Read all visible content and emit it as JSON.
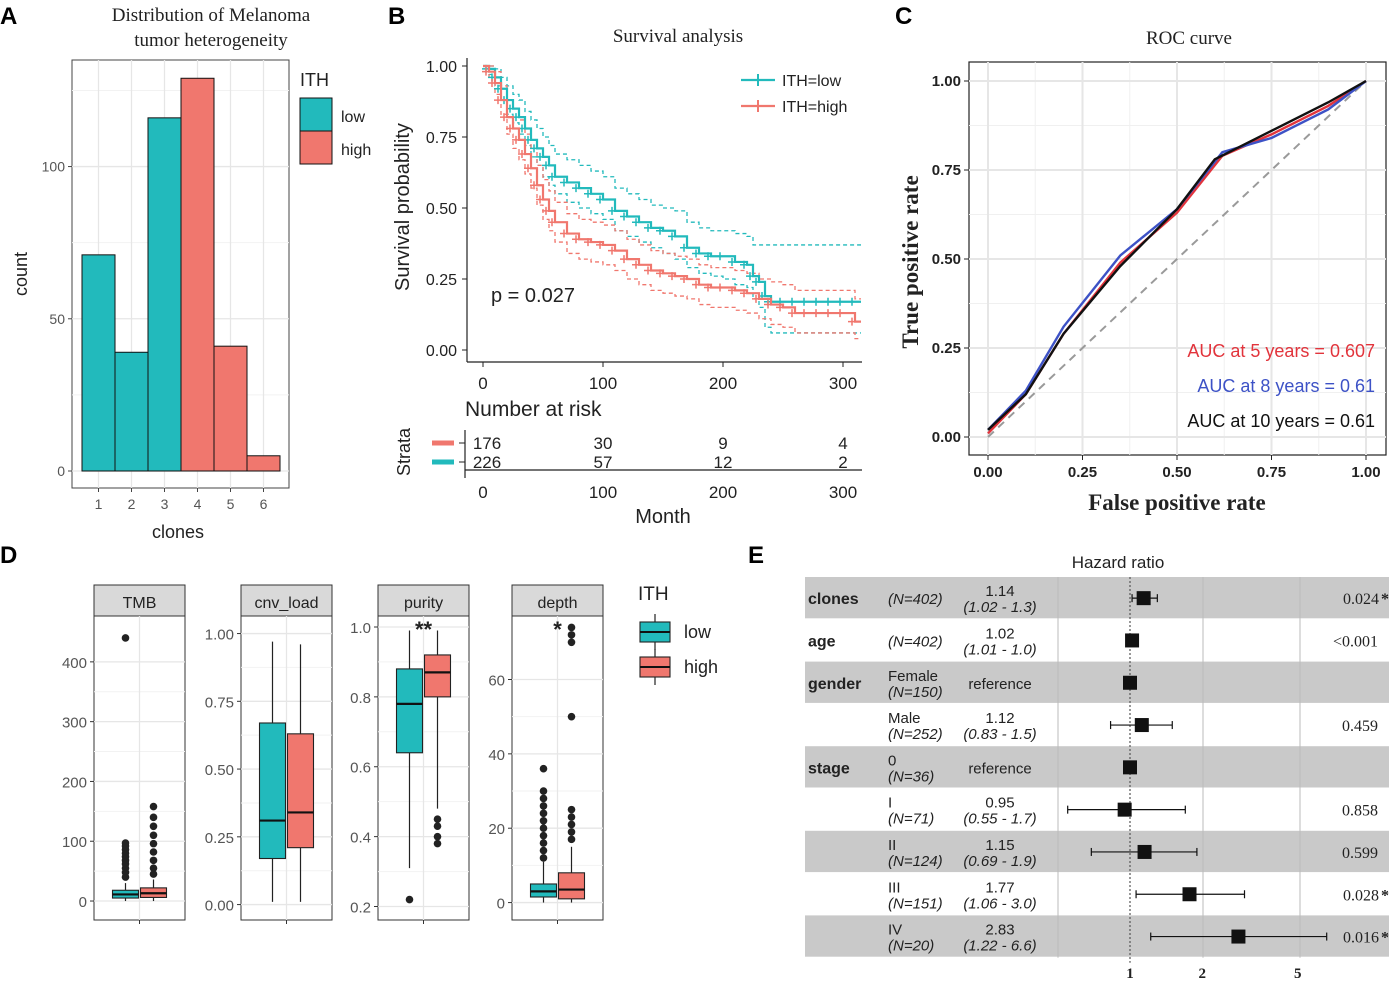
{
  "panel_letters": [
    "A",
    "B",
    "C",
    "D",
    "E"
  ],
  "colors": {
    "low": "#22BABC",
    "high": "#F0776E",
    "blue": "#3D52C6",
    "red": "#E2343C",
    "black": "#111111",
    "grid": "#E6E6E6",
    "forest_shade": "#C9C9C9"
  },
  "chart_data": [
    {
      "id": "A",
      "type": "bar",
      "title_lines": [
        "Distribution of Melanoma",
        "tumor heterogeneity"
      ],
      "xlabel": "clones",
      "ylabel": "count",
      "categories": [
        "1",
        "2",
        "3",
        "4",
        "5",
        "6"
      ],
      "values": [
        71,
        39,
        116,
        129,
        41,
        5
      ],
      "groups": [
        "low",
        "low",
        "low",
        "high",
        "high",
        "high"
      ],
      "yticks": [
        0,
        50,
        100
      ],
      "ylim": [
        0,
        135
      ],
      "legend": {
        "title": "ITH",
        "items": [
          "low",
          "high"
        ]
      }
    },
    {
      "id": "B",
      "type": "line",
      "title": "Survival analysis",
      "ylabel": "Survival probability",
      "xlabel": "Month",
      "xticks": [
        0,
        100,
        200,
        300
      ],
      "yticks": [
        "0.00",
        "0.25",
        "0.50",
        "0.75",
        "1.00"
      ],
      "xlim": [
        0,
        315
      ],
      "ylim": [
        0,
        1
      ],
      "pvalue_text": "p = 0.027",
      "series": [
        {
          "name": "ITH=low",
          "key": "low",
          "x": [
            0,
            5,
            10,
            15,
            20,
            25,
            30,
            35,
            40,
            45,
            50,
            55,
            60,
            70,
            80,
            90,
            100,
            110,
            120,
            130,
            140,
            150,
            160,
            170,
            180,
            190,
            200,
            210,
            220,
            225,
            230,
            235,
            240,
            250,
            260,
            270,
            280,
            290,
            300,
            310,
            315
          ],
          "y": [
            1.0,
            0.99,
            0.96,
            0.92,
            0.88,
            0.85,
            0.82,
            0.78,
            0.74,
            0.71,
            0.68,
            0.65,
            0.61,
            0.59,
            0.57,
            0.55,
            0.53,
            0.49,
            0.47,
            0.45,
            0.43,
            0.42,
            0.4,
            0.36,
            0.34,
            0.33,
            0.33,
            0.31,
            0.3,
            0.26,
            0.24,
            0.19,
            0.17,
            0.17,
            0.17,
            0.17,
            0.17,
            0.17,
            0.17,
            0.17,
            0.17
          ],
          "ci_low": [
            1.0,
            0.97,
            0.93,
            0.88,
            0.83,
            0.8,
            0.76,
            0.72,
            0.68,
            0.65,
            0.61,
            0.58,
            0.55,
            0.52,
            0.5,
            0.48,
            0.46,
            0.42,
            0.4,
            0.38,
            0.36,
            0.34,
            0.32,
            0.29,
            0.27,
            0.26,
            0.25,
            0.23,
            0.22,
            0.18,
            0.15,
            0.08,
            0.06,
            0.06,
            0.06,
            0.06,
            0.06,
            0.06,
            0.06,
            0.06,
            0.06
          ],
          "ci_high": [
            1.0,
            1.0,
            0.99,
            0.96,
            0.93,
            0.9,
            0.88,
            0.84,
            0.81,
            0.78,
            0.75,
            0.72,
            0.69,
            0.67,
            0.65,
            0.63,
            0.61,
            0.57,
            0.55,
            0.53,
            0.51,
            0.5,
            0.49,
            0.45,
            0.43,
            0.42,
            0.42,
            0.41,
            0.4,
            0.37,
            0.37,
            0.37,
            0.37,
            0.37,
            0.37,
            0.37,
            0.37,
            0.37,
            0.37,
            0.37,
            0.37
          ]
        },
        {
          "name": "ITH=high",
          "key": "high",
          "x": [
            0,
            5,
            10,
            15,
            20,
            25,
            30,
            35,
            40,
            45,
            50,
            55,
            60,
            70,
            80,
            90,
            100,
            110,
            120,
            130,
            140,
            150,
            160,
            170,
            180,
            190,
            200,
            210,
            220,
            230,
            240,
            250,
            260,
            270,
            280,
            290,
            300,
            310,
            315
          ],
          "y": [
            1.0,
            0.98,
            0.94,
            0.88,
            0.82,
            0.78,
            0.74,
            0.69,
            0.64,
            0.58,
            0.53,
            0.49,
            0.45,
            0.41,
            0.39,
            0.38,
            0.37,
            0.35,
            0.32,
            0.3,
            0.28,
            0.27,
            0.26,
            0.25,
            0.23,
            0.22,
            0.22,
            0.21,
            0.2,
            0.18,
            0.16,
            0.15,
            0.13,
            0.13,
            0.13,
            0.13,
            0.13,
            0.1,
            0.1
          ],
          "ci_low": [
            1.0,
            0.96,
            0.9,
            0.83,
            0.76,
            0.71,
            0.67,
            0.62,
            0.57,
            0.51,
            0.46,
            0.42,
            0.38,
            0.34,
            0.32,
            0.31,
            0.3,
            0.28,
            0.25,
            0.23,
            0.21,
            0.2,
            0.19,
            0.18,
            0.16,
            0.15,
            0.15,
            0.14,
            0.13,
            0.11,
            0.09,
            0.08,
            0.06,
            0.06,
            0.06,
            0.06,
            0.06,
            0.04,
            0.04
          ],
          "ci_high": [
            1.0,
            1.0,
            0.98,
            0.93,
            0.88,
            0.85,
            0.81,
            0.76,
            0.71,
            0.65,
            0.6,
            0.56,
            0.52,
            0.48,
            0.46,
            0.45,
            0.44,
            0.42,
            0.39,
            0.37,
            0.35,
            0.34,
            0.33,
            0.32,
            0.3,
            0.29,
            0.29,
            0.28,
            0.27,
            0.25,
            0.24,
            0.23,
            0.21,
            0.21,
            0.21,
            0.21,
            0.21,
            0.18,
            0.18
          ]
        }
      ],
      "legend": [
        "ITH=low",
        "ITH=high"
      ],
      "risk_table": {
        "title": "Number at risk",
        "strata_label": "Strata",
        "xlabel": "Month",
        "times": [
          0,
          100,
          200,
          300
        ],
        "rows": [
          {
            "key": "high",
            "counts": [
              "176",
              "30",
              "9",
              "4"
            ]
          },
          {
            "key": "low",
            "counts": [
              "226",
              "57",
              "12",
              "2"
            ]
          }
        ]
      }
    },
    {
      "id": "C",
      "type": "line",
      "title": "ROC curve",
      "xlabel": "False positive rate",
      "ylabel": "True positive rate",
      "xticks": [
        "0.00",
        "0.25",
        "0.50",
        "0.75",
        "1.00"
      ],
      "yticks": [
        "0.00",
        "0.25",
        "0.50",
        "0.75",
        "1.00"
      ],
      "xlim": [
        0,
        1
      ],
      "ylim": [
        0,
        1
      ],
      "series": [
        {
          "name": "AUC at 5 years = 0.607",
          "color": "#E2343C",
          "x": [
            0,
            0.1,
            0.2,
            0.35,
            0.5,
            0.62,
            0.75,
            0.9,
            1.0
          ],
          "y": [
            0.01,
            0.12,
            0.29,
            0.49,
            0.63,
            0.79,
            0.85,
            0.93,
            1.0
          ]
        },
        {
          "name": "AUC at 8 years = 0.61",
          "color": "#3D52C6",
          "x": [
            0,
            0.1,
            0.2,
            0.35,
            0.5,
            0.62,
            0.75,
            0.9,
            1.0
          ],
          "y": [
            0.02,
            0.13,
            0.31,
            0.51,
            0.64,
            0.8,
            0.84,
            0.92,
            1.0
          ]
        },
        {
          "name": "AUC at 10 years = 0.61",
          "color": "#111111",
          "x": [
            0,
            0.1,
            0.2,
            0.35,
            0.5,
            0.6,
            0.75,
            0.9,
            1.0
          ],
          "y": [
            0.02,
            0.12,
            0.29,
            0.48,
            0.64,
            0.78,
            0.86,
            0.94,
            1.0
          ]
        }
      ],
      "reference_line": [
        [
          0,
          0
        ],
        [
          1,
          1
        ]
      ]
    },
    {
      "id": "D",
      "type": "box",
      "legend": {
        "title": "ITH",
        "items": [
          "low",
          "high"
        ]
      },
      "facets": [
        {
          "name": "TMB",
          "yticks": [
            0,
            100,
            200,
            300,
            400
          ],
          "ylim": [
            -15,
            470
          ],
          "low": {
            "min": 0,
            "q1": 5,
            "median": 11,
            "q3": 18,
            "max": 30,
            "outliers": [
              40,
              48,
              55,
              62,
              68,
              74,
              80,
              86,
              92,
              97,
              440
            ]
          },
          "high": {
            "min": 0,
            "q1": 6,
            "median": 13,
            "q3": 22,
            "max": 36,
            "outliers": [
              45,
              55,
              68,
              82,
              96,
              110,
              125,
              140,
              158
            ]
          }
        },
        {
          "name": "cnv_load",
          "yticks": [
            "0.00",
            "0.25",
            "0.50",
            "0.75",
            "1.00"
          ],
          "ylim": [
            -0.02,
            1.05
          ],
          "low": {
            "min": 0.01,
            "q1": 0.17,
            "median": 0.31,
            "q3": 0.67,
            "max": 0.97,
            "outliers": []
          },
          "high": {
            "min": 0.01,
            "q1": 0.21,
            "median": 0.34,
            "q3": 0.63,
            "max": 0.96,
            "outliers": []
          }
        },
        {
          "name": "purity",
          "yticks": [
            "0.2",
            "0.4",
            "0.6",
            "0.8",
            "1.0"
          ],
          "ylim": [
            0.19,
            1.02
          ],
          "low": {
            "min": 0.31,
            "q1": 0.64,
            "median": 0.78,
            "q3": 0.88,
            "max": 0.99,
            "outliers": [
              0.22
            ]
          },
          "high": {
            "min": 0.48,
            "q1": 0.8,
            "median": 0.87,
            "q3": 0.92,
            "max": 0.99,
            "outliers": [
              0.38,
              0.4,
              0.43,
              0.45
            ]
          },
          "significance": "**"
        },
        {
          "name": "depth",
          "yticks": [
            0,
            20,
            40,
            60
          ],
          "ylim": [
            -2,
            76
          ],
          "low": {
            "min": 0,
            "q1": 1.5,
            "median": 3,
            "q3": 5,
            "max": 11,
            "outliers": [
              12,
              14,
              16,
              18,
              20,
              22,
              24,
              26,
              28,
              30,
              36
            ]
          },
          "high": {
            "min": 0,
            "q1": 1,
            "median": 3.5,
            "q3": 8,
            "max": 15,
            "outliers": [
              17,
              19,
              21,
              23,
              25,
              50,
              70,
              72,
              74
            ]
          },
          "significance": "*"
        }
      ]
    },
    {
      "id": "E",
      "type": "forest",
      "title": "Hazard ratio",
      "xticks": [
        "1",
        "2",
        "5"
      ],
      "xlim": [
        0.3,
        10
      ],
      "rows": [
        {
          "variable": "clones",
          "level": "",
          "n": "(N=402)",
          "estimate_text": "1.14",
          "ci_text": "(1.02 - 1.3)",
          "hr": 1.14,
          "lo": 1.02,
          "hi": 1.3,
          "pvalue": "0.024",
          "star": "*",
          "shaded": true
        },
        {
          "variable": "age",
          "level": "",
          "n": "(N=402)",
          "estimate_text": "1.02",
          "ci_text": "(1.01 - 1.0)",
          "hr": 1.02,
          "lo": 1.01,
          "hi": 1.03,
          "pvalue": "<0.001",
          "star": "",
          "shaded": false
        },
        {
          "variable": "gender",
          "level": "Female",
          "n": "(N=150)",
          "estimate_text": "reference",
          "ci_text": "",
          "hr": 1.0,
          "lo": null,
          "hi": null,
          "pvalue": "",
          "star": "",
          "shaded": true
        },
        {
          "variable": "",
          "level": "Male",
          "n": "(N=252)",
          "estimate_text": "1.12",
          "ci_text": "(0.83 - 1.5)",
          "hr": 1.12,
          "lo": 0.83,
          "hi": 1.5,
          "pvalue": "0.459",
          "star": "",
          "shaded": false
        },
        {
          "variable": "stage",
          "level": "0",
          "n": "(N=36)",
          "estimate_text": "reference",
          "ci_text": "",
          "hr": 1.0,
          "lo": null,
          "hi": null,
          "pvalue": "",
          "star": "",
          "shaded": true
        },
        {
          "variable": "",
          "level": "I",
          "n": "(N=71)",
          "estimate_text": "0.95",
          "ci_text": "(0.55 - 1.7)",
          "hr": 0.95,
          "lo": 0.55,
          "hi": 1.7,
          "pvalue": "0.858",
          "star": "",
          "shaded": false
        },
        {
          "variable": "",
          "level": "II",
          "n": "(N=124)",
          "estimate_text": "1.15",
          "ci_text": "(0.69 - 1.9)",
          "hr": 1.15,
          "lo": 0.69,
          "hi": 1.9,
          "pvalue": "0.599",
          "star": "",
          "shaded": true
        },
        {
          "variable": "",
          "level": "III",
          "n": "(N=151)",
          "estimate_text": "1.77",
          "ci_text": "(1.06 - 3.0)",
          "hr": 1.77,
          "lo": 1.06,
          "hi": 3.0,
          "pvalue": "0.028",
          "star": "*",
          "shaded": false
        },
        {
          "variable": "",
          "level": "IV",
          "n": "(N=20)",
          "estimate_text": "2.83",
          "ci_text": "(1.22 - 6.6)",
          "hr": 2.83,
          "lo": 1.22,
          "hi": 6.6,
          "pvalue": "0.016",
          "star": "*",
          "shaded": true
        }
      ]
    }
  ]
}
